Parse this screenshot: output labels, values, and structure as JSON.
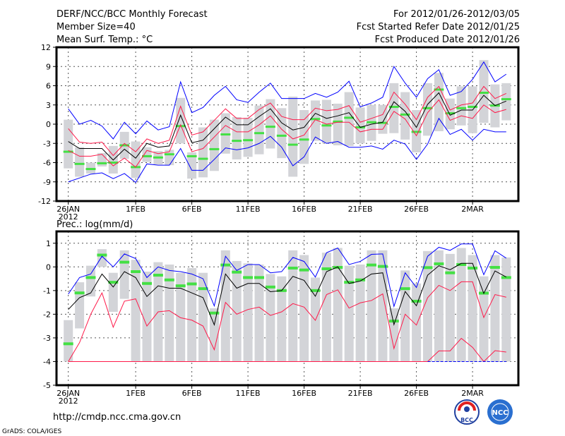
{
  "header": {
    "title": "DERF/NCC/BCC Monthly Forecast",
    "member_size": "Member Size=40",
    "variable": "Mean Surf. Temp.: °C",
    "period": "For 2012/01/26-2012/03/05",
    "start_date": "Fcst Started Refer Date 2012/01/25",
    "produced_date": "Fcst Produced Date 2012/01/26"
  },
  "footer": {
    "url": "http://cmdp.ncc.cma.gov.cn",
    "credit": "GrADS: COLA/IGES",
    "logo_left": "BCC",
    "logo_right": "NCC"
  },
  "colors": {
    "max": "#0000ff",
    "mean": "#000000",
    "pct": "#ff1a4a",
    "box": "#d3d4d8",
    "obs": "#44e044"
  },
  "chart_data": [
    {
      "type": "line",
      "title": "Mean Surf. Temp.: °C",
      "x_ticks": [
        {
          "day": 0,
          "label": "26JAN",
          "sub": "2012"
        },
        {
          "day": 6,
          "label": "1FEB"
        },
        {
          "day": 11,
          "label": "6FEB"
        },
        {
          "day": 16,
          "label": "11FEB"
        },
        {
          "day": 21,
          "label": "16FEB"
        },
        {
          "day": 26,
          "label": "21FEB"
        },
        {
          "day": 31,
          "label": "26FEB"
        },
        {
          "day": 36,
          "label": "2MAR"
        }
      ],
      "y_ticks": [
        12,
        9,
        6,
        3,
        0,
        -3,
        -6,
        -9,
        -12
      ],
      "y_tick_labels": [
        "12",
        "9",
        "6",
        "3",
        "0",
        "-3",
        "-6",
        "-9",
        "-12"
      ],
      "ylim": [
        -12,
        12
      ],
      "grid": true,
      "series": [
        {
          "name": "max",
          "color": "max",
          "values": [
            2.4,
            0.0,
            0.6,
            -0.3,
            -2.3,
            0.3,
            -1.5,
            0.5,
            -0.9,
            -0.4,
            6.6,
            1.8,
            2.6,
            4.5,
            5.9,
            3.8,
            3.4,
            5.0,
            6.4,
            4.0,
            4.0,
            4.0,
            4.8,
            4.2,
            5.0,
            6.7,
            2.7,
            3.3,
            4.2,
            9.0,
            6.4,
            4.2,
            7.1,
            8.5,
            4.5,
            5.1,
            7.0,
            9.7,
            6.6,
            7.8
          ]
        },
        {
          "name": "upper",
          "color": "pct",
          "values": [
            -0.7,
            -2.8,
            -3.0,
            -2.8,
            -4.9,
            -3.0,
            -4.3,
            -2.3,
            -3.0,
            -2.5,
            2.8,
            -1.7,
            -1.2,
            0.6,
            2.4,
            0.9,
            0.9,
            2.3,
            3.3,
            1.2,
            0.7,
            0.7,
            2.5,
            2.1,
            2.3,
            2.9,
            0.3,
            0.9,
            1.5,
            5.0,
            3.1,
            0.7,
            4.2,
            5.9,
            2.2,
            3.0,
            3.3,
            5.9,
            4.0,
            4.8
          ]
        },
        {
          "name": "mean",
          "color": "mean",
          "values": [
            -2.7,
            -3.8,
            -3.8,
            -3.8,
            -5.6,
            -3.9,
            -5.3,
            -3.0,
            -3.6,
            -3.4,
            1.4,
            -2.9,
            -2.5,
            -0.7,
            1.1,
            -0.1,
            -0.1,
            1.2,
            2.4,
            0.2,
            -0.9,
            -0.5,
            1.7,
            0.9,
            1.3,
            1.8,
            -0.5,
            0.0,
            0.3,
            3.5,
            2.0,
            -0.5,
            3.1,
            4.9,
            1.4,
            2.2,
            2.2,
            4.5,
            2.9,
            3.6
          ]
        },
        {
          "name": "lower",
          "color": "pct",
          "values": [
            -4.1,
            -5.0,
            -5.0,
            -4.7,
            -6.5,
            -5.3,
            -6.7,
            -4.1,
            -4.6,
            -4.3,
            -0.1,
            -4.3,
            -3.8,
            -2.0,
            -0.2,
            -1.2,
            -1.2,
            -0.1,
            1.3,
            -0.8,
            -2.3,
            -1.7,
            0.7,
            0.0,
            0.3,
            0.3,
            -1.2,
            -0.8,
            -0.8,
            2.0,
            0.8,
            -1.8,
            1.8,
            3.8,
            0.6,
            1.3,
            0.9,
            3.0,
            1.8,
            2.3
          ]
        },
        {
          "name": "min",
          "color": "max",
          "values": [
            -9.0,
            -8.4,
            -7.8,
            -7.6,
            -8.5,
            -7.7,
            -9.1,
            -6.2,
            -6.4,
            -6.4,
            -3.8,
            -7.2,
            -7.2,
            -5.5,
            -3.7,
            -4.0,
            -3.7,
            -3.0,
            -1.9,
            -3.6,
            -6.5,
            -5.1,
            -2.0,
            -3.0,
            -2.7,
            -3.6,
            -3.6,
            -3.4,
            -3.9,
            -2.5,
            -3.1,
            -5.5,
            -3.1,
            0.9,
            -1.6,
            -0.8,
            -2.5,
            -0.8,
            -1.2,
            -1.2
          ]
        }
      ],
      "box_low": [
        -6.9,
        -8.2,
        -7.7,
        -6.6,
        -7.7,
        -5.4,
        -8.4,
        -5.9,
        -6.3,
        -6.4,
        -3.0,
        -8.5,
        -8.3,
        -7.3,
        -4.6,
        -5.5,
        -5.1,
        -4.7,
        -3.8,
        -5.3,
        -8.2,
        -6.2,
        -2.6,
        -3.0,
        -3.3,
        -3.4,
        -3.0,
        -2.6,
        -1.5,
        -1.4,
        -2.4,
        -4.4,
        -1.8,
        -1.1,
        -0.8,
        -0.2,
        -1.4,
        0.2,
        -0.5,
        0.6
      ],
      "box_high": [
        0.7,
        -3.6,
        -6.0,
        -4.5,
        -3.4,
        -1.2,
        -2.7,
        -3.6,
        -4.2,
        -4.0,
        4.1,
        -4.4,
        -0.5,
        0.7,
        1.7,
        1.1,
        1.0,
        2.9,
        3.9,
        2.5,
        4.3,
        2.2,
        3.7,
        3.8,
        3.2,
        5.0,
        2.6,
        3.0,
        3.0,
        6.4,
        5.0,
        2.2,
        6.4,
        8.0,
        4.0,
        5.9,
        5.9,
        10.0,
        6.2,
        6.4
      ],
      "obs": [
        -4.3,
        -6.2,
        -7.0,
        -6.1,
        -6.0,
        -3.3,
        -6.7,
        -5.0,
        -5.2,
        -4.7,
        -0.3,
        -5.0,
        -5.4,
        -3.9,
        -1.6,
        -2.6,
        -2.5,
        -1.4,
        -0.4,
        -1.8,
        -3.2,
        -2.4,
        0.8,
        -0.2,
        0.4,
        1.0,
        -0.5,
        0.3,
        0.2,
        2.7,
        1.5,
        -1.2,
        2.5,
        5.4,
        1.7,
        2.5,
        2.7,
        4.9,
        2.9,
        3.9
      ]
    },
    {
      "type": "line",
      "title": "Prec.: log(mm/d)",
      "x_ticks": [
        {
          "day": 0,
          "label": "26JAN",
          "sub": "2012"
        },
        {
          "day": 6,
          "label": "1FEB"
        },
        {
          "day": 11,
          "label": "6FEB"
        },
        {
          "day": 16,
          "label": "11FEB"
        },
        {
          "day": 21,
          "label": "16FEB"
        },
        {
          "day": 26,
          "label": "21FEB"
        },
        {
          "day": 31,
          "label": "26FEB"
        },
        {
          "day": 36,
          "label": "2MAR"
        }
      ],
      "y_ticks": [
        1,
        0,
        -1,
        -2,
        -3,
        -4,
        -5
      ],
      "y_tick_labels": [
        "1",
        "0",
        "-1",
        "-2",
        "-3",
        "-4",
        "-5"
      ],
      "ylim": [
        -5,
        1.5
      ],
      "grid": true,
      "series": [
        {
          "name": "max",
          "color": "max",
          "values": [
            -1.15,
            -0.45,
            -0.3,
            0.45,
            0.0,
            0.55,
            0.35,
            -0.45,
            0.0,
            -0.15,
            -0.2,
            -0.3,
            -0.5,
            -1.65,
            0.45,
            -0.15,
            0.1,
            0.1,
            -0.25,
            -0.2,
            0.4,
            0.23,
            -0.43,
            0.6,
            0.8,
            0.1,
            0.23,
            0.53,
            0.55,
            -1.67,
            -0.25,
            -0.87,
            0.45,
            0.83,
            0.7,
            0.97,
            0.97,
            -0.33,
            0.68,
            0.37
          ]
        },
        {
          "name": "mean",
          "color": "mean",
          "values": [
            -1.8,
            -1.3,
            -1.1,
            -0.3,
            -0.85,
            -0.2,
            -0.45,
            -1.25,
            -0.8,
            -0.9,
            -0.9,
            -1.1,
            -1.3,
            -2.45,
            -0.3,
            -0.9,
            -0.7,
            -0.7,
            -1.05,
            -1.0,
            -0.4,
            -0.57,
            -1.24,
            -0.2,
            0.0,
            -0.7,
            -0.6,
            -0.3,
            -0.25,
            -2.44,
            -1.04,
            -1.64,
            -0.35,
            0.05,
            -0.12,
            0.15,
            0.15,
            -1.12,
            -0.17,
            -0.43
          ]
        },
        {
          "name": "lower",
          "color": "pct",
          "values": [
            -4.0,
            -3.2,
            -2.0,
            -1.1,
            -2.55,
            -1.45,
            -1.35,
            -2.5,
            -1.9,
            -1.85,
            -2.15,
            -2.25,
            -2.5,
            -3.5,
            -1.5,
            -2.0,
            -1.8,
            -1.7,
            -2.05,
            -1.9,
            -1.55,
            -1.7,
            -2.26,
            -1.17,
            -0.97,
            -1.74,
            -1.52,
            -1.42,
            -1.14,
            -3.45,
            -2.0,
            -2.46,
            -1.3,
            -0.78,
            -1.0,
            -0.63,
            -0.63,
            -2.14,
            -1.17,
            -1.28
          ]
        },
        {
          "name": "low",
          "color": "pct",
          "values": [
            -4,
            -4,
            -4,
            -4,
            -4,
            -4,
            -4,
            -4,
            -4,
            -4,
            -4,
            -4,
            -4,
            -4,
            -4,
            -4,
            -4,
            -4,
            -4,
            -4,
            -4,
            -4,
            -4,
            -4,
            -4,
            -4,
            -4,
            -4,
            -4,
            -4,
            -4,
            -4,
            -4,
            -3.55,
            -3.55,
            -3.02,
            -3.4,
            -4.0,
            -3.54,
            -3.6
          ]
        },
        {
          "name": "min",
          "color": "max",
          "dashed": true,
          "start": 32,
          "values": [
            -4,
            -4,
            -4,
            -4,
            -4,
            -4,
            -4,
            -4,
            -4,
            -4,
            -4,
            -4,
            -4,
            -4,
            -4,
            -4,
            -4,
            -4,
            -4,
            -4,
            -4,
            -4,
            -4,
            -4,
            -4,
            -4,
            -4,
            -4,
            -4,
            -4,
            -4,
            -4,
            -4,
            -4,
            -4,
            -4,
            -4,
            -4,
            -4,
            -4
          ]
        }
      ],
      "box_low": [
        -4,
        -2.6,
        -1.25,
        0,
        -1.9,
        -1.35,
        -4,
        -4,
        -4,
        -4,
        -4,
        -4,
        -4,
        -4,
        -4,
        -4,
        -4,
        -4,
        -4,
        -4,
        -4,
        -4,
        -4,
        -4,
        -4,
        -4,
        -4,
        -4,
        -4,
        -4,
        -4,
        -4,
        -4,
        -4,
        -4,
        -4,
        -4,
        -4,
        -4,
        -4
      ],
      "box_high": [
        -2.25,
        -0.65,
        0.05,
        0.75,
        -0.25,
        0.7,
        0.3,
        -0.2,
        0.2,
        0.1,
        -0.25,
        -0.05,
        -0.25,
        -1.75,
        0.7,
        0.25,
        0.15,
        0.1,
        -0.3,
        -0.4,
        0.7,
        0.5,
        -0.45,
        0.6,
        0.8,
        0.05,
        0.1,
        0.7,
        0.7,
        -1.75,
        -0.15,
        -0.7,
        0.67,
        0.7,
        0.55,
        0.8,
        0.5,
        -0.4,
        0.5,
        0.4
      ],
      "obs": [
        -3.25,
        -1.1,
        -0.45,
        0.5,
        -0.65,
        0.2,
        -0.2,
        -0.7,
        -0.35,
        -0.55,
        -0.8,
        -0.72,
        -0.92,
        -1.95,
        0.08,
        -0.22,
        -0.45,
        -0.45,
        -0.85,
        -1.0,
        -0.05,
        -0.13,
        -1.0,
        -0.08,
        -0.02,
        -0.65,
        -0.55,
        0.08,
        0.02,
        -2.29,
        -0.92,
        -1.45,
        -0.03,
        0.13,
        -0.25,
        0.1,
        -0.05,
        -1.11,
        -0.02,
        -0.45
      ]
    }
  ]
}
